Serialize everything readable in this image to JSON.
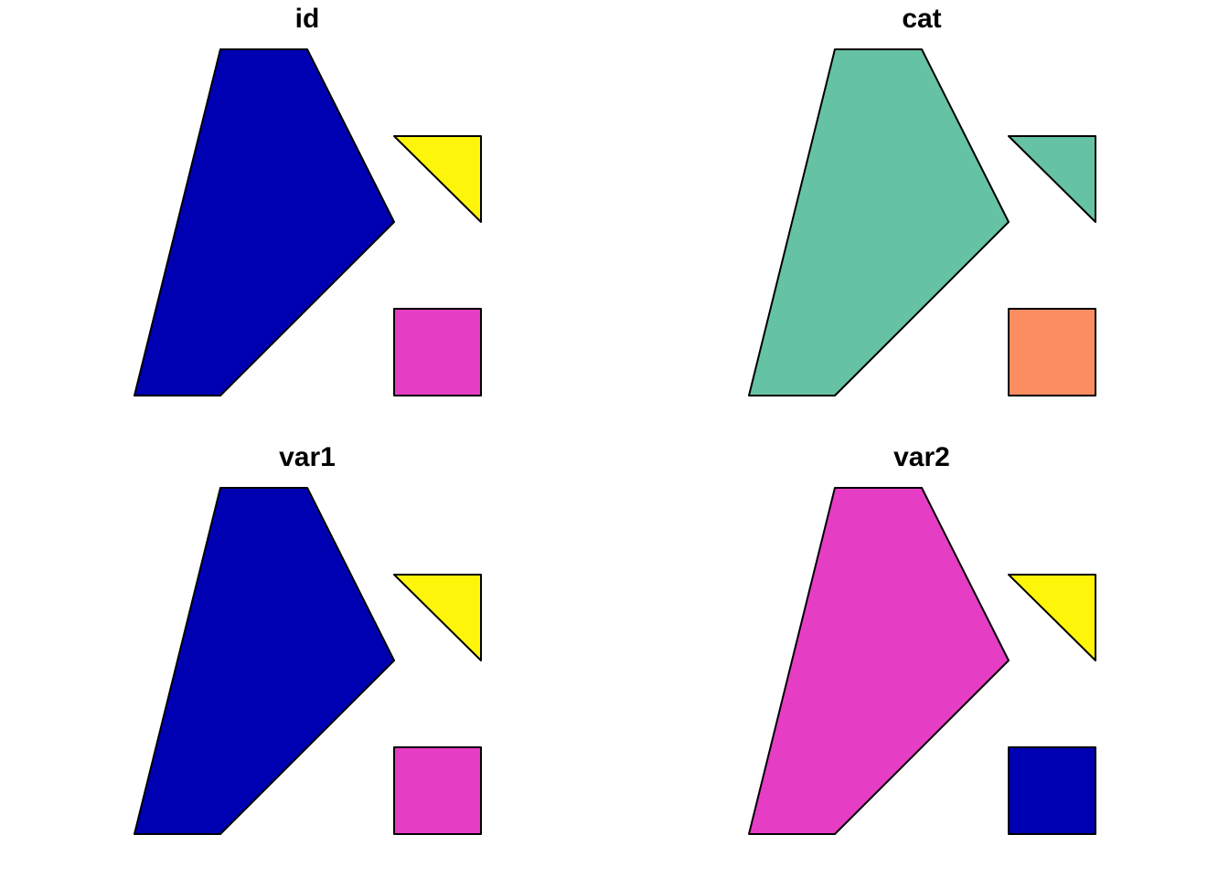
{
  "panels": [
    {
      "title": "id",
      "fills": {
        "main-polygon": "#0000B3",
        "triangle": "#FFF50B",
        "square": "#E53DC4"
      }
    },
    {
      "title": "cat",
      "fills": {
        "main-polygon": "#66C2A5",
        "triangle": "#66C2A5",
        "square": "#FC8D62"
      }
    },
    {
      "title": "var1",
      "fills": {
        "main-polygon": "#0000B3",
        "triangle": "#FFF50B",
        "square": "#E53DC4"
      }
    },
    {
      "title": "var2",
      "fills": {
        "main-polygon": "#E53DC4",
        "triangle": "#FFF50B",
        "square": "#0000B3"
      }
    }
  ]
}
